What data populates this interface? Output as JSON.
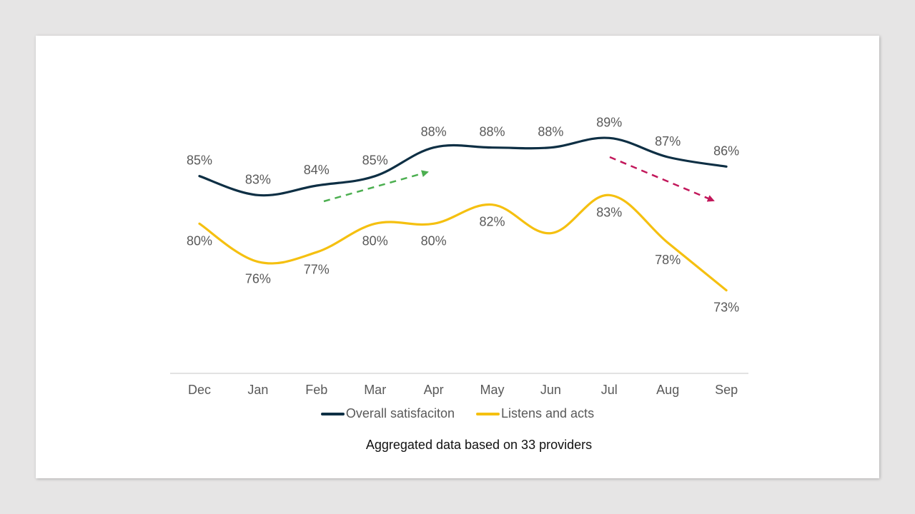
{
  "chart_data": {
    "type": "line",
    "title": "",
    "xlabel": "",
    "ylabel": "",
    "ylim": [
      70,
      92
    ],
    "grid": false,
    "categories": [
      "Dec",
      "Jan",
      "Feb",
      "Mar",
      "Apr",
      "May",
      "Jun",
      "Jul",
      "Aug",
      "Sep"
    ],
    "series": [
      {
        "name": "Overall satisfaciton",
        "color": "#0e2f44",
        "values": [
          85,
          83,
          84,
          85,
          88,
          88,
          88,
          89,
          87,
          86
        ],
        "labels": [
          "85%",
          "83%",
          "84%",
          "85%",
          "88%",
          "88%",
          "88%",
          "89%",
          "87%",
          "86%"
        ],
        "label_position": "above"
      },
      {
        "name": "Listens and acts",
        "color": "#f5c010",
        "values": [
          80,
          76,
          77,
          80,
          80,
          82,
          79,
          83,
          78,
          73
        ],
        "labels": [
          "80%",
          "76%",
          "77%",
          "80%",
          "80%",
          "82%",
          "",
          "83%",
          "78%",
          "73%"
        ],
        "label_position": "below"
      }
    ],
    "annotations": [
      {
        "type": "trend-arrow",
        "direction": "up",
        "color": "#4caf50",
        "from": "Feb",
        "to": "Apr",
        "style": "dashed"
      },
      {
        "type": "trend-arrow",
        "direction": "down",
        "color": "#c2185b",
        "from": "Jul",
        "to": "Sep",
        "style": "dashed"
      }
    ],
    "legend": "bottom",
    "caption": "Aggregated data based on 33 providers"
  }
}
